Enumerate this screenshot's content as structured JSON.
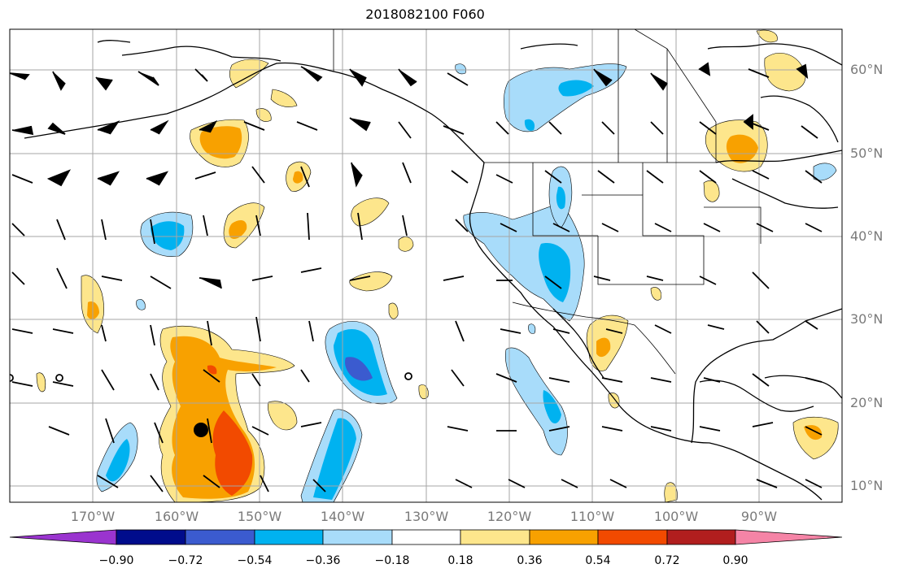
{
  "title": "2018082100 F060",
  "lat_labels": [
    "60°N",
    "50°N",
    "40°N",
    "30°N",
    "20°N",
    "10°N"
  ],
  "lon_labels": [
    "170°W",
    "160°W",
    "150°W",
    "140°W",
    "130°W",
    "120°W",
    "110°W",
    "100°W",
    "90°W"
  ],
  "colorbar": {
    "ticks": [
      "−0.90",
      "−0.72",
      "−0.54",
      "−0.36",
      "−0.18",
      "0.18",
      "0.36",
      "0.54",
      "0.72",
      "0.90"
    ],
    "colors": [
      "#9a34cf",
      "#000c8c",
      "#3b5bcf",
      "#00b2f0",
      "#a8dcfa",
      "#ffffff",
      "#fde68c",
      "#f8a100",
      "#f24a00",
      "#b11e1e",
      "#f584a6"
    ]
  },
  "chart_data": {
    "type": "heatmap",
    "title": "2018082100 F060",
    "projection": "lat-lon",
    "lon_range": [
      -180,
      -80
    ],
    "lat_range": [
      8,
      65
    ],
    "grid": true,
    "colorbar_levels": [
      -0.9,
      -0.72,
      -0.54,
      -0.36,
      -0.18,
      0.18,
      0.36,
      0.54,
      0.72,
      0.9
    ],
    "marked_point": {
      "lon": -156.5,
      "lat": 16.5
    }
  }
}
